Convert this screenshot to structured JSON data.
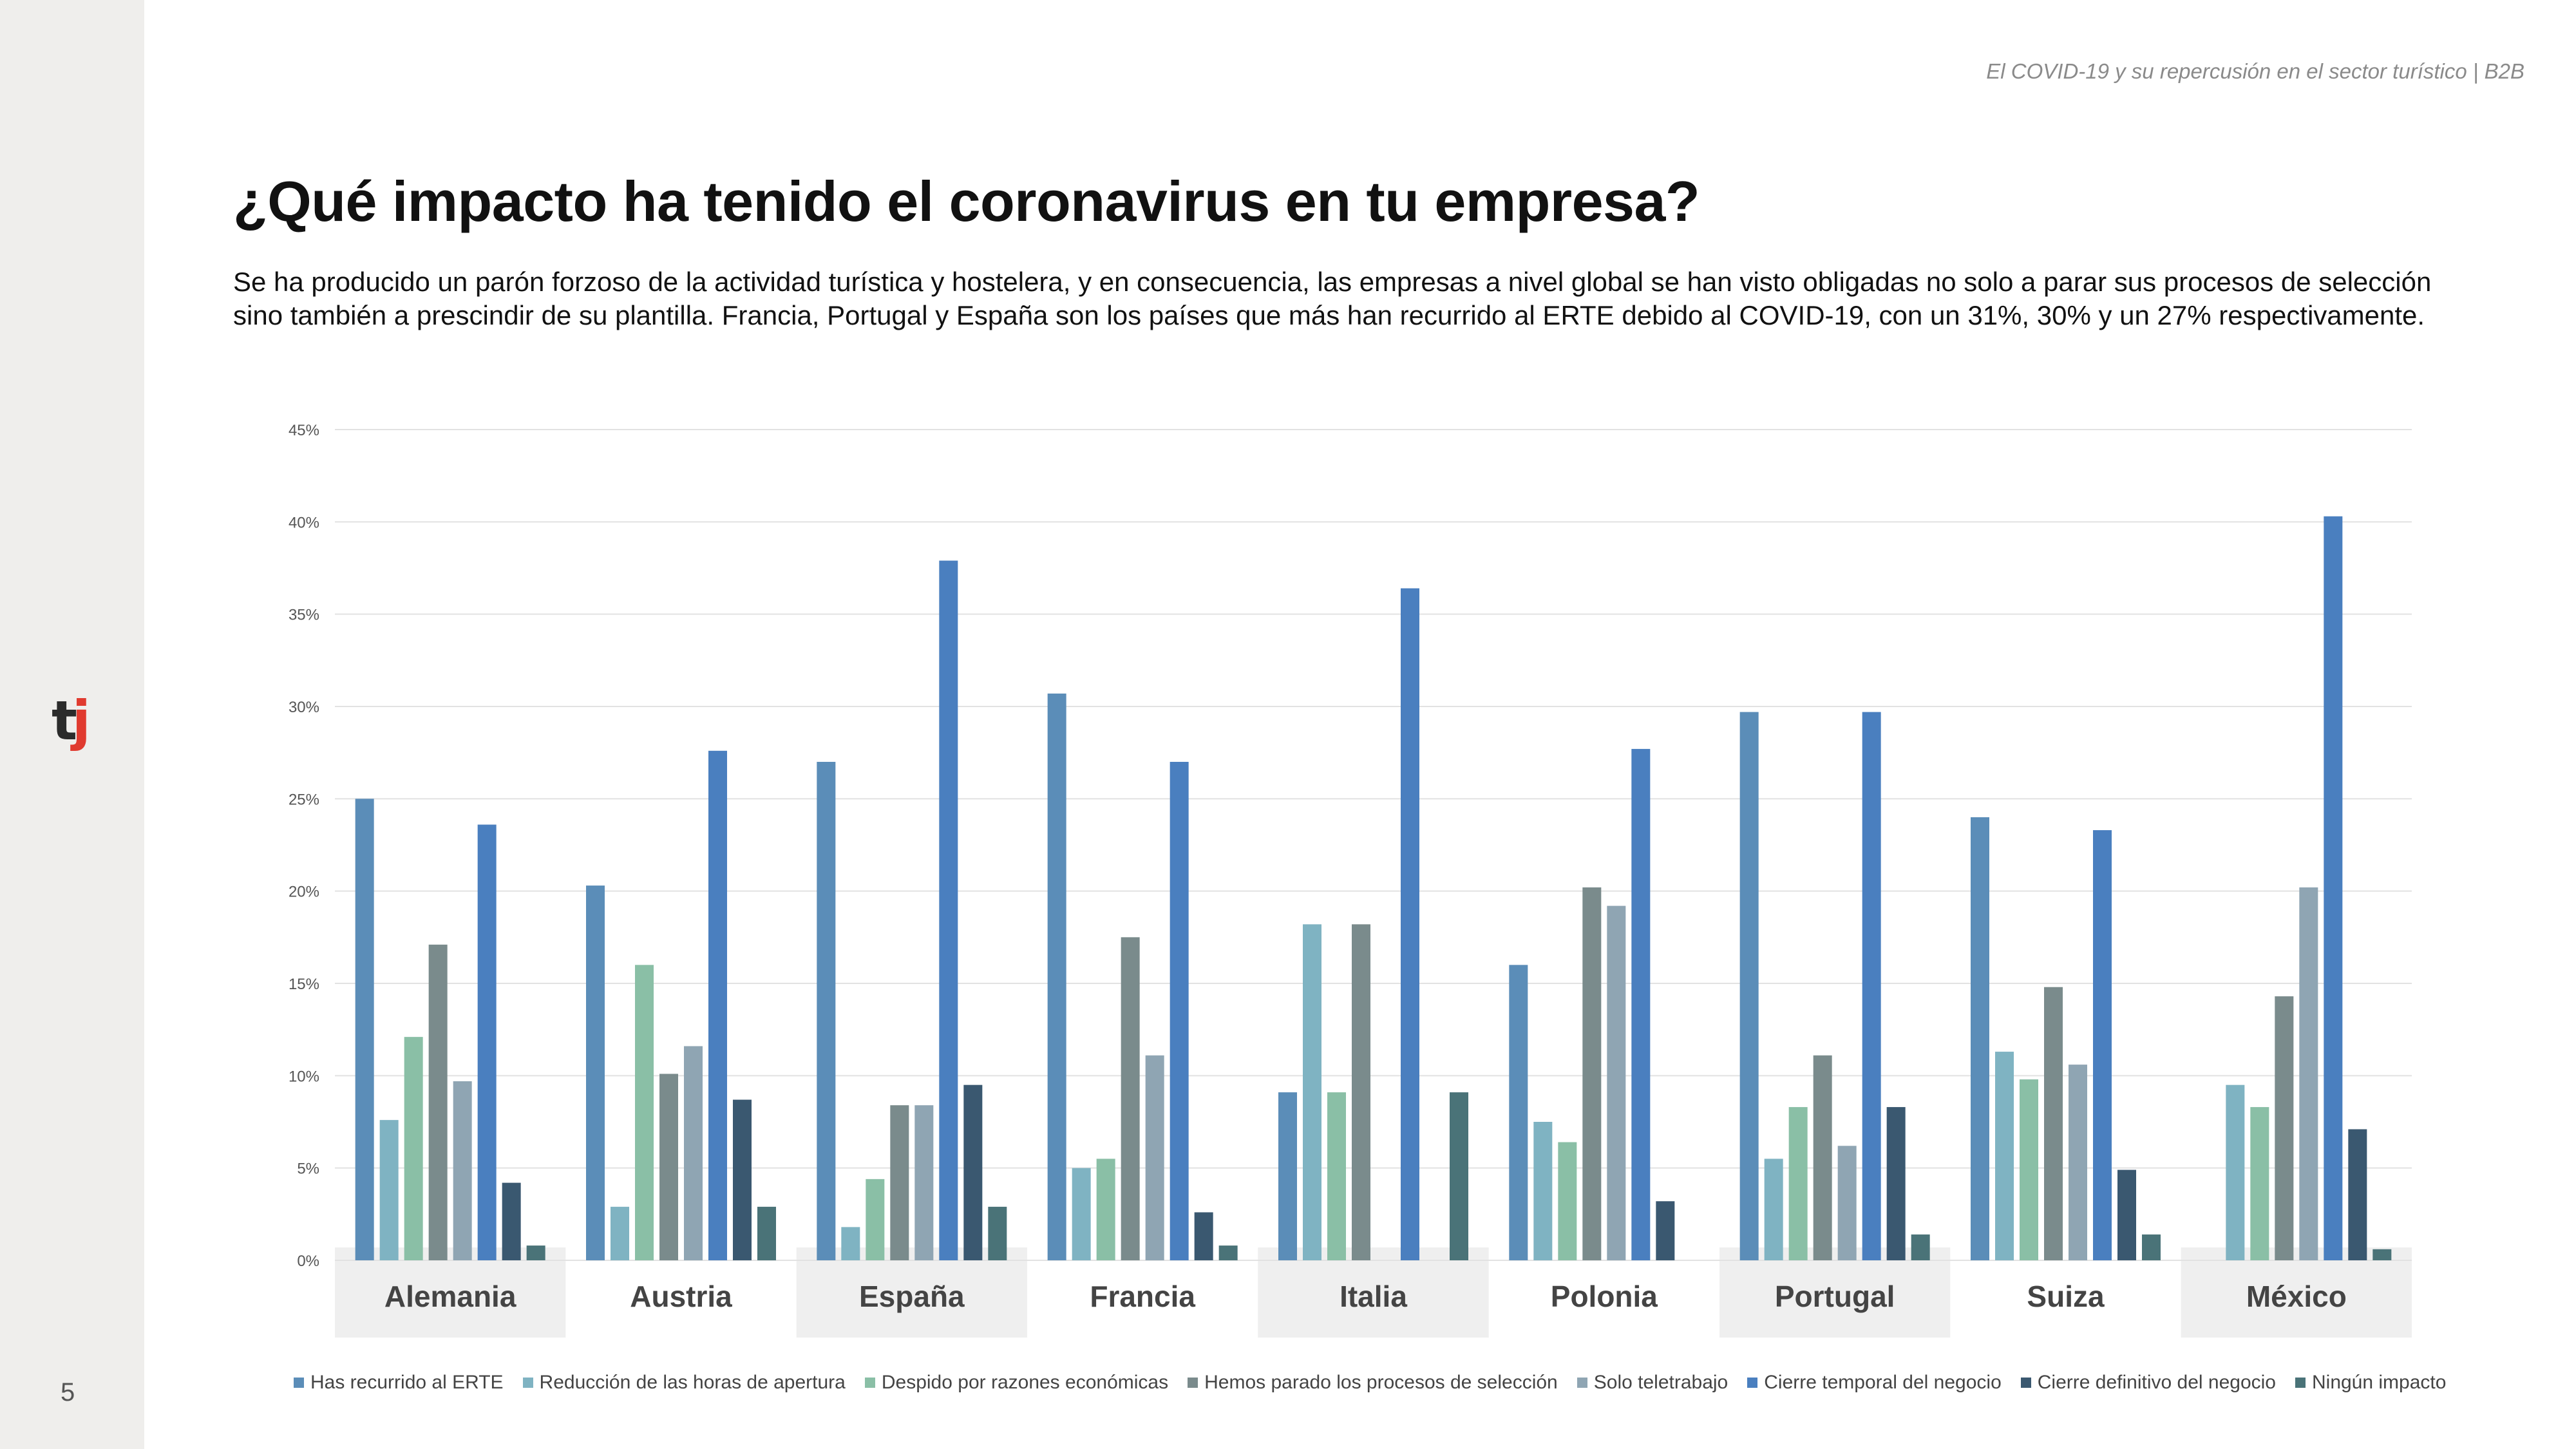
{
  "header": {
    "doc_title": "El COVID-19 y su repercusión en el sector turístico | B2B"
  },
  "page": {
    "title": "¿Qué impacto ha tenido el coronavirus en tu empresa?",
    "intro": "Se ha producido un parón forzoso de la actividad turística y hostelera, y en consecuencia, las empresas a nivel global se han visto obligadas no solo a parar sus procesos de selección sino también a prescindir de su plantilla. Francia, Portugal y España son los países que más han recurrido al ERTE debido al COVID-19, con un 31%, 30% y un 27% respectivamente.",
    "number": "5"
  },
  "logo": {
    "text": "tj",
    "colors": {
      "t": "#2b2b2b",
      "j": "#e03a2f"
    }
  },
  "colors": {
    "sidebar": "#efeeec",
    "grid": "#e2e2e2",
    "category_band": "#efefef"
  },
  "chart_data": {
    "type": "bar",
    "categories": [
      "Alemania",
      "Austria",
      "España",
      "Francia",
      "Italia",
      "Polonia",
      "Portugal",
      "Suiza",
      "México"
    ],
    "ylim": [
      0,
      45
    ],
    "yticks": [
      "0%",
      "5%",
      "10%",
      "15%",
      "20%",
      "25%",
      "30%",
      "35%",
      "40%",
      "45%"
    ],
    "grid": true,
    "legend_position": "bottom",
    "series": [
      {
        "name": "Has recurrido al ERTE",
        "color": "#5b8db8",
        "values": [
          25,
          20.3,
          27,
          30.7,
          9.1,
          16,
          29.7,
          24,
          0
        ]
      },
      {
        "name": "Reducción de las horas de apertura",
        "color": "#7fb3c2",
        "values": [
          7.6,
          2.9,
          1.8,
          5,
          18.2,
          7.5,
          5.5,
          11.3,
          9.5
        ]
      },
      {
        "name": "Despido por razones económicas",
        "color": "#8abfa6",
        "values": [
          12.1,
          16,
          4.4,
          5.5,
          9.1,
          6.4,
          8.3,
          9.8,
          8.3
        ]
      },
      {
        "name": "Hemos parado los procesos de selección",
        "color": "#7a8b8c",
        "values": [
          17.1,
          10.1,
          8.4,
          17.5,
          18.2,
          20.2,
          11.1,
          14.8,
          14.3
        ]
      },
      {
        "name": "Solo teletrabajo",
        "color": "#8fa5b3",
        "values": [
          9.7,
          11.6,
          8.4,
          11.1,
          0,
          19.2,
          6.2,
          10.6,
          20.2
        ]
      },
      {
        "name": "Cierre temporal del negocio",
        "color": "#4a7fbf",
        "values": [
          23.6,
          27.6,
          37.9,
          27,
          36.4,
          27.7,
          29.7,
          23.3,
          40.3
        ]
      },
      {
        "name": "Cierre definitivo del negocio",
        "color": "#3a5870",
        "values": [
          4.2,
          8.7,
          9.5,
          2.6,
          0,
          3.2,
          8.3,
          4.9,
          7.1
        ]
      },
      {
        "name": "Ningún impacto",
        "color": "#4a7378",
        "values": [
          0.8,
          2.9,
          2.9,
          0.8,
          9.1,
          0,
          1.4,
          1.4,
          0.6
        ]
      }
    ]
  }
}
